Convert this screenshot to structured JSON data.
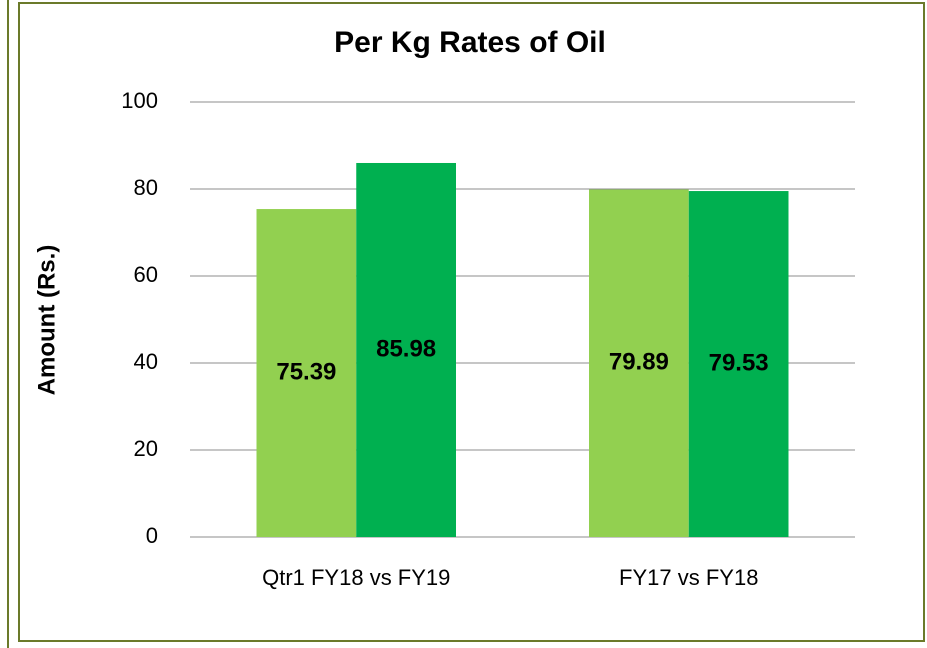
{
  "chart_data": {
    "type": "bar",
    "title": "Per Kg Rates of Oil",
    "y_label": "Amount (Rs.)",
    "categories": [
      "Qtr1 FY18 vs FY19",
      "FY17 vs FY18"
    ],
    "series": [
      {
        "color": "#92d050",
        "values": [
          75.39,
          79.89
        ]
      },
      {
        "color": "#00b050",
        "values": [
          85.98,
          79.53
        ]
      }
    ],
    "ylim": [
      0,
      100
    ],
    "yticks": [
      0,
      20,
      40,
      60,
      80,
      100
    ],
    "grid": true
  }
}
